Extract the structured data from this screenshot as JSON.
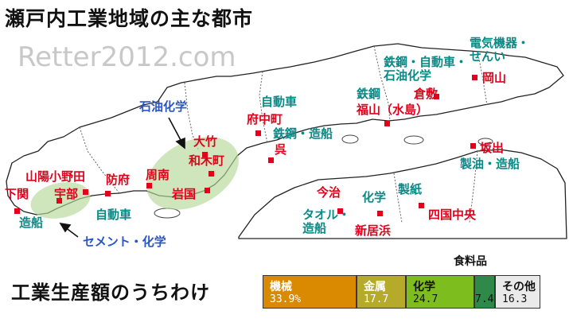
{
  "title": "瀬戸内工業地域の主な都市",
  "watermark": "Retter2012.com",
  "map_labels": {
    "denki": "電気機器・\nせんい",
    "tekko_jidosha": "鉄鋼・自動車・\n石油化学",
    "okayama": "岡山",
    "tekko": "鉄鋼",
    "kurashiki": "倉敷",
    "fukuyama": "福山（水島）",
    "jidosha_fuchu": "自動車",
    "fuchu": "府中町",
    "tekko_zosen": "鉄鋼・造船",
    "kure": "呉",
    "sekiyu_kagaku": "石油化学",
    "takatake": "大竹",
    "waki": "和木町",
    "sakaide": "坂出",
    "seiyu_zosen": "製油・造船",
    "sanyo_onoda": "山陽小野田",
    "hofu": "防府",
    "shunan": "周南",
    "iwakuni": "岩国",
    "shimonoseki": "下関",
    "ube": "宇部",
    "zosen_left": "造船",
    "jidosha_hofu": "自動車",
    "cement_kagaku": "セメント・化学",
    "imabari": "今治",
    "imabari_ind": "タオル・\n造船",
    "kagaku_niihama": "化学",
    "niihama": "新居浜",
    "seishi": "製紙",
    "shikoku_chuo": "四国中央"
  },
  "breakdown": {
    "title": "工業生産額のうちわけ",
    "food_label": "食料品",
    "segments": [
      {
        "name": "機械",
        "value": "33.9%",
        "color": "#d98a00",
        "text_color": "#ffffff",
        "fraction": 0.339
      },
      {
        "name": "金属",
        "value": "17.7",
        "color": "#b5aa2a",
        "text_color": "#ffffff",
        "fraction": 0.177
      },
      {
        "name": "化学",
        "value": "24.7",
        "color": "#7dbd1e",
        "text_color": "#111111",
        "fraction": 0.247
      },
      {
        "name": "",
        "value": "7.4",
        "color": "#2f8a4a",
        "text_color": "#111111",
        "fraction": 0.074
      },
      {
        "name": "その他",
        "value": "16.3",
        "color": "#eaeaea",
        "text_color": "#111111",
        "fraction": 0.163
      }
    ]
  }
}
